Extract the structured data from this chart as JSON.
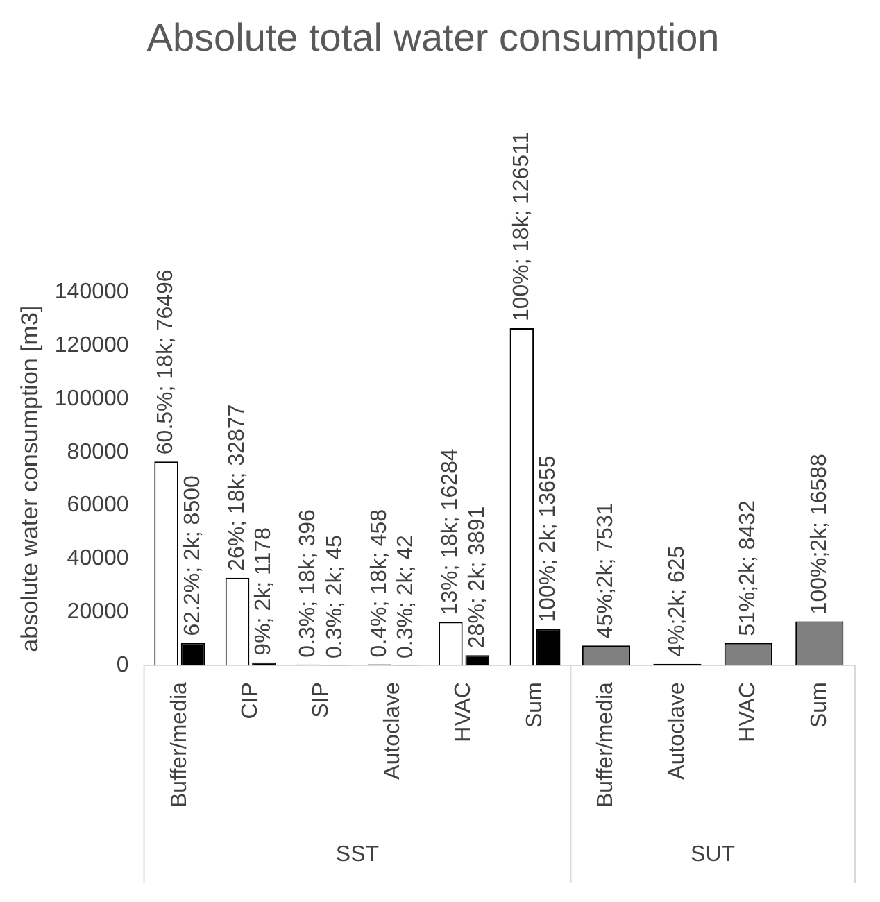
{
  "chart_data": {
    "type": "bar",
    "title": "Absolute total water consumption",
    "ylabel": "absolute water consumption [m3]",
    "categories": [
      "Buffer/media",
      "CIP",
      "SIP",
      "Autoclave",
      "HVAC",
      "Sum",
      "Buffer/media",
      "Autoclave",
      "HVAC",
      "Sum"
    ],
    "series": [
      {
        "color": "#ffffff",
        "values": [
          76496,
          32877,
          396,
          458,
          16284,
          126511,
          null,
          null,
          null,
          null
        ],
        "value_labels": [
          "60.5%; 18k; 76496",
          "26%; 18k; 32877",
          "0.3%; 18k; 396",
          "0.4%; 18k; 458",
          "13%; 18k; 16284",
          "100%; 18k; 126511",
          null,
          null,
          null,
          null
        ]
      },
      {
        "color": "#000000",
        "values": [
          8500,
          1178,
          45,
          42,
          3891,
          13655,
          null,
          null,
          null,
          null
        ],
        "value_labels": [
          "62.2%; 2k; 8500",
          "9%; 2k; 1178",
          "0.3%; 2k; 45",
          "0.3%; 2k; 42",
          "28%; 2k; 3891",
          "100%; 2k; 13655",
          null,
          null,
          null,
          null
        ]
      },
      {
        "color": "#808080",
        "values": [
          null,
          null,
          null,
          null,
          null,
          null,
          7531,
          625,
          8432,
          16588
        ],
        "value_labels": [
          null,
          null,
          null,
          null,
          null,
          null,
          "45%;2k; 7531",
          "4%;2k; 625",
          "51%;2k; 8432",
          "100%;2k; 16588"
        ]
      }
    ],
    "annotations": [
      "SST",
      "SUT"
    ],
    "ylim": [
      0,
      140000
    ],
    "yticks": [
      0,
      20000,
      40000,
      60000,
      80000,
      100000,
      120000,
      140000
    ],
    "grid": false,
    "legend": false
  }
}
